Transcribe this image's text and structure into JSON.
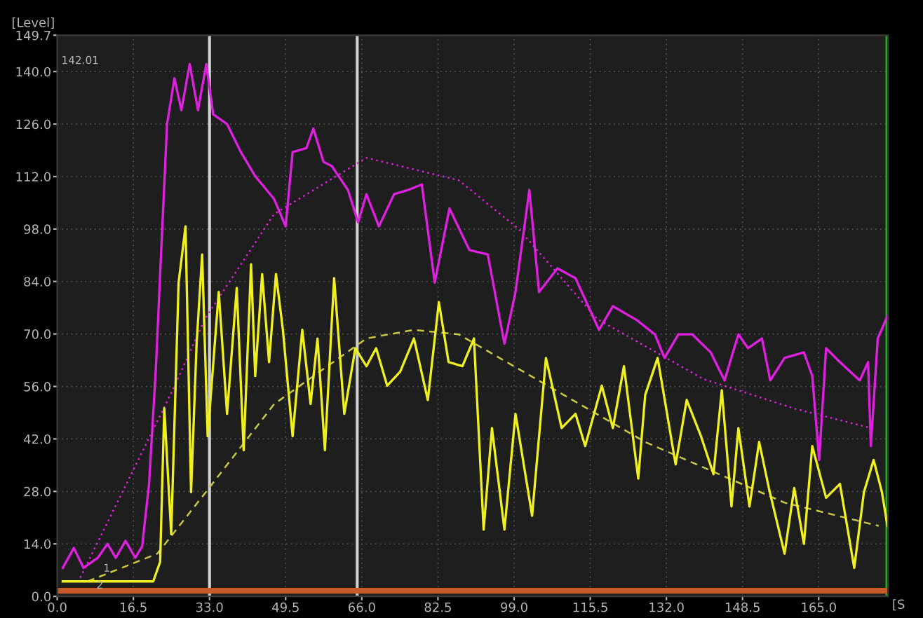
{
  "chart_data": {
    "type": "line",
    "ylabel": "[Level]",
    "xlabel": "[S",
    "xlim": [
      0,
      180
    ],
    "ylim": [
      0,
      149.7
    ],
    "xticks": [
      {
        "value": 0,
        "label": "0.0"
      },
      {
        "value": 16.5,
        "label": "16.5"
      },
      {
        "value": 33,
        "label": "33.0"
      },
      {
        "value": 49.5,
        "label": "49.5"
      },
      {
        "value": 66,
        "label": "66.0"
      },
      {
        "value": 82.5,
        "label": "82.5"
      },
      {
        "value": 99,
        "label": "99.0"
      },
      {
        "value": 115.5,
        "label": "115.5"
      },
      {
        "value": 132,
        "label": "132.0"
      },
      {
        "value": 148.5,
        "label": "148.5"
      },
      {
        "value": 165,
        "label": "165.0"
      }
    ],
    "yticks": [
      {
        "value": 0,
        "label": "0.0"
      },
      {
        "value": 14,
        "label": "14.0"
      },
      {
        "value": 28,
        "label": "28.0"
      },
      {
        "value": 42,
        "label": "42.0"
      },
      {
        "value": 56,
        "label": "56.0"
      },
      {
        "value": 70,
        "label": "70.0"
      },
      {
        "value": 84,
        "label": "84.0"
      },
      {
        "value": 98,
        "label": "98.0"
      },
      {
        "value": 112,
        "label": "112.0"
      },
      {
        "value": 126,
        "label": "126.0"
      },
      {
        "value": 140,
        "label": "140.0"
      },
      {
        "value": 149.7,
        "label": "149.7"
      }
    ],
    "grid": true,
    "marker": "none",
    "series": [
      {
        "color": "#c85a28",
        "line_style": "solid",
        "x": [
          0,
          180
        ],
        "values": [
          1.5,
          1.5
        ]
      },
      {
        "color": "#e020e0",
        "line_style": "dotted",
        "x": [
          5,
          15,
          25,
          32,
          47,
          67,
          87,
          100,
          117,
          140,
          160,
          176
        ],
        "values": [
          5,
          30,
          55,
          74,
          102,
          117,
          111,
          98,
          74,
          58,
          50,
          45
        ]
      },
      {
        "color": "#c8c840",
        "line_style": "dashed",
        "x": [
          6.6,
          21.7,
          32.9,
          47,
          67,
          77.3,
          87,
          127.4,
          157.6,
          178
        ],
        "values": [
          4,
          11.4,
          28.9,
          51.3,
          68.8,
          71.1,
          69.9,
          41.2,
          25,
          18.8
        ]
      },
      {
        "color": "#f0f020",
        "line_style": "solid",
        "x": [
          1.2,
          20.8,
          22.3,
          23.2,
          24.7,
          26.3,
          27.8,
          29,
          30.2,
          31.4,
          32.6,
          35,
          36.8,
          38.9,
          40.4,
          42,
          42.9,
          44.4,
          45.9,
          47.4,
          48.9,
          51,
          53.1,
          54.9,
          56.4,
          58,
          60,
          62.2,
          64.6,
          67,
          69.1,
          71.5,
          74.3,
          77.3,
          80.3,
          82.7,
          84.8,
          87.8,
          90.3,
          92.4,
          94.2,
          96.9,
          99.3,
          102.9,
          105.9,
          109.3,
          112.3,
          114.4,
          118,
          120.4,
          122.8,
          125.9,
          127.4,
          130.1,
          134,
          136.4,
          139.5,
          142.2,
          144,
          146.1,
          147.6,
          150,
          152.1,
          154.2,
          157.6,
          159.7,
          161.8,
          163.6,
          166.6,
          169.6,
          172.7,
          174.8,
          176.9,
          178.7,
          179.9
        ],
        "values": [
          4,
          4,
          9.2,
          50.2,
          16.6,
          83.7,
          98.7,
          27.8,
          67.4,
          91.2,
          42.7,
          81.2,
          48.7,
          82.3,
          39,
          88.6,
          58.8,
          86,
          62.5,
          86,
          71.1,
          42.7,
          71.1,
          51.3,
          68.8,
          39,
          84.9,
          48.7,
          66.2,
          61.4,
          66.2,
          56.2,
          59.9,
          68.8,
          52.4,
          78.5,
          62.5,
          61.4,
          68.8,
          17.8,
          44.9,
          17.8,
          48.7,
          21.5,
          63.6,
          44.9,
          48.7,
          40.1,
          56.2,
          44.9,
          61.4,
          31.4,
          53.7,
          63.6,
          35.2,
          52.4,
          42.7,
          32.6,
          55,
          24,
          44.9,
          24,
          41.2,
          28.9,
          11.4,
          28.9,
          14,
          40.1,
          26.3,
          30,
          7.6,
          27.8,
          36.4,
          27.8,
          18.8
        ]
      },
      {
        "color": "#e020e0",
        "line_style": "solid",
        "x": [
          1.2,
          3.6,
          5.7,
          8.8,
          10.9,
          12.7,
          14.8,
          16.9,
          18.4,
          19.9,
          21.4,
          22.3,
          23.8,
          25.4,
          26.9,
          28.7,
          30.5,
          32.3,
          33.8,
          36.8,
          39.8,
          42.9,
          47,
          49.5,
          51,
          54,
          55.5,
          57.7,
          59.5,
          63,
          65.2,
          67,
          69.7,
          73,
          76,
          79,
          81.8,
          85,
          89.3,
          93.3,
          96.9,
          99.3,
          102.3,
          104.4,
          108.4,
          112.3,
          117.4,
          120.4,
          125.6,
          129.5,
          131.6,
          134.6,
          137.6,
          141.6,
          144.6,
          147.6,
          149.7,
          152.7,
          154.5,
          157.6,
          161.8,
          163.6,
          165.1,
          166.6,
          169.6,
          173.9,
          175.7,
          176.3,
          177.8,
          179.9
        ],
        "values": [
          7.6,
          12.9,
          7.6,
          10.3,
          14,
          10.3,
          14.8,
          10.3,
          13.3,
          30,
          61.4,
          86,
          126,
          138.2,
          129.7,
          142,
          129.7,
          142,
          128.6,
          126,
          118.5,
          112.1,
          106,
          98.7,
          118.5,
          119.6,
          124.8,
          115.9,
          114.8,
          108.4,
          99.8,
          107.3,
          98.7,
          107.3,
          108.4,
          109.9,
          83.7,
          103.5,
          92.4,
          91.2,
          67.4,
          81.2,
          108.4,
          81.2,
          87.5,
          84.9,
          71.1,
          77.4,
          73.7,
          69.9,
          63.6,
          69.9,
          69.9,
          65.1,
          57.6,
          69.9,
          66.2,
          68.8,
          57.6,
          63.6,
          65.1,
          58.8,
          36.4,
          66.2,
          62.5,
          57.6,
          62.5,
          40.1,
          68.8,
          74.8
        ]
      }
    ],
    "ref_lines": [
      {
        "axis": "x",
        "value": 33,
        "color": "#d0d0d0"
      },
      {
        "axis": "x",
        "value": 65,
        "color": "#d0d0d0"
      },
      {
        "axis": "x",
        "value": 180,
        "color": "#20b020"
      }
    ],
    "annotations": [
      "142.01",
      {
        "text": "1",
        "x": 10,
        "y": 6
      },
      {
        "text": "2",
        "x": 8.5,
        "y": 1.5
      }
    ]
  }
}
